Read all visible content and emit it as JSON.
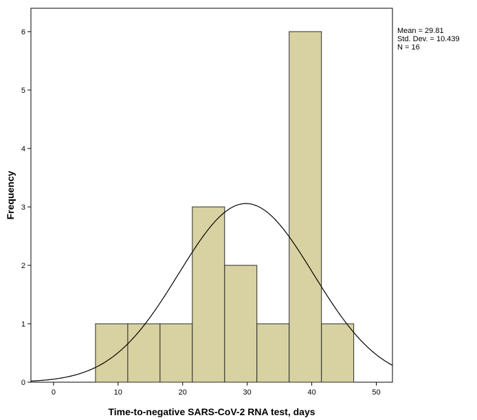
{
  "chart_data": {
    "type": "bar",
    "subtype": "histogram",
    "title": "",
    "xlabel": "Time-to-negative SARS-CoV-2 RNA test, days",
    "ylabel": "Frequency",
    "xlim": [
      -3.5,
      52.5
    ],
    "ylim": [
      0,
      6.4
    ],
    "x_ticks": [
      0,
      10,
      20,
      30,
      40,
      50
    ],
    "y_ticks": [
      0,
      1,
      2,
      3,
      4,
      5,
      6
    ],
    "bins": [
      {
        "start": 6.5,
        "end": 11.5,
        "value": 1
      },
      {
        "start": 11.5,
        "end": 16.5,
        "value": 1
      },
      {
        "start": 16.5,
        "end": 21.5,
        "value": 1
      },
      {
        "start": 21.5,
        "end": 26.5,
        "value": 3
      },
      {
        "start": 26.5,
        "end": 31.5,
        "value": 2
      },
      {
        "start": 31.5,
        "end": 36.5,
        "value": 1
      },
      {
        "start": 36.5,
        "end": 41.5,
        "value": 6
      },
      {
        "start": 41.5,
        "end": 46.5,
        "value": 1
      }
    ],
    "normal_curve": {
      "mean": 29.81,
      "std": 10.439,
      "n": 16,
      "bin_width": 5
    },
    "stats": {
      "mean_label": "Mean = 29.81",
      "std_label": "Std. Dev. = 10.439",
      "n_label": "N = 16"
    },
    "bar_color": "#d8d1a1",
    "bar_edge_color": "#2a2a2a",
    "grid": false,
    "legend_position": "top-right"
  }
}
